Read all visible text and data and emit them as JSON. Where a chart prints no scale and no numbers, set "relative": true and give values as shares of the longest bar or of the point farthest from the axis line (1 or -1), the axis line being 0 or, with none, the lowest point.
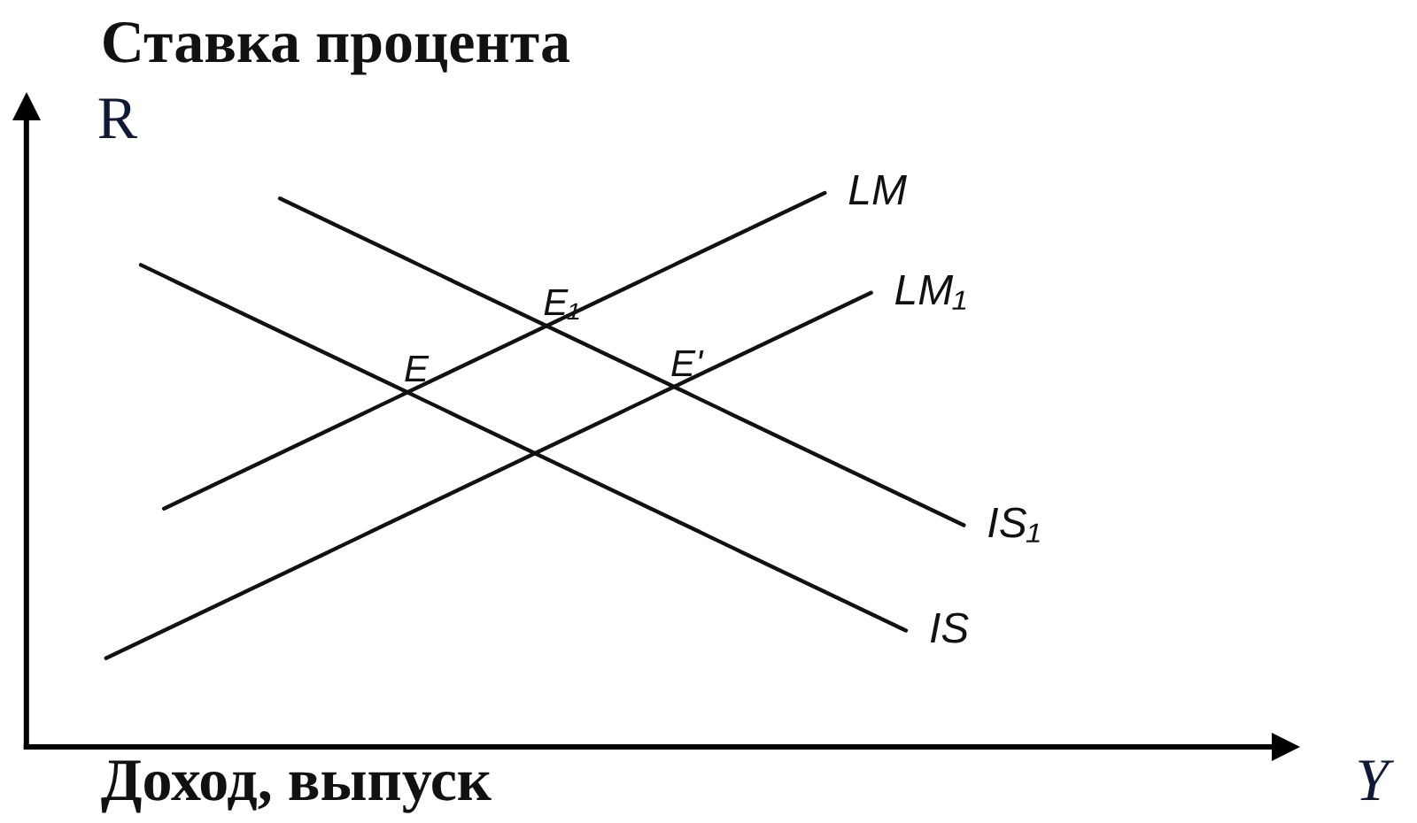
{
  "chart_data": {
    "type": "line",
    "relative": true,
    "xlabel": "Доход, выпуск",
    "ylabel": "Ставка процента",
    "categories": [
      null,
      null,
      null,
      null,
      null,
      null,
      null,
      null,
      null,
      null,
      null,
      null,
      null,
      null,
      null,
      null,
      null,
      null,
      null,
      null,
      null,
      null,
      null,
      null,
      null,
      null,
      null,
      null,
      null,
      null,
      null,
      null,
      null,
      null,
      null,
      null,
      null,
      null,
      null,
      null,
      null,
      null,
      null,
      null,
      null,
      null,
      null,
      null,
      null,
      null,
      null,
      null,
      null,
      null,
      null,
      null,
      null,
      null,
      null,
      null,
      null,
      null,
      null,
      null,
      null,
      null,
      null,
      null,
      null,
      null,
      null,
      null,
      null,
      null,
      null
    ],
    "series": [
      {
        "name": "LM",
        "color": "#111111",
        "values": [
          null,
          null,
          null,
          null,
          null,
          0.43,
          0.44,
          0.45,
          0.46,
          0.47,
          0.48,
          0.49,
          0.5,
          0.51,
          0.52,
          0.53,
          0.54,
          0.55,
          0.56,
          0.57,
          0.58,
          0.59,
          0.6,
          0.61,
          0.62,
          0.63,
          0.64,
          0.65,
          0.66,
          0.67,
          0.68,
          0.69,
          0.7,
          0.71,
          0.72,
          0.73,
          0.74,
          0.75,
          0.76,
          0.77,
          0.78,
          0.79,
          0.8,
          0.81,
          0.82,
          0.83,
          0.84,
          0.85,
          0.86,
          0.87,
          0.88,
          0.89,
          0.9,
          0.91,
          0.92,
          0.93,
          0.94,
          0.95,
          0.96,
          0.97,
          0.98,
          0.99,
          1.0,
          null,
          null,
          null,
          null,
          null,
          null,
          null,
          null,
          null,
          null,
          null,
          null
        ]
      },
      {
        "name": "LM₁",
        "color": "#111111",
        "values": [
          0.16,
          0.17,
          0.18,
          0.19,
          0.2,
          0.21,
          0.22,
          0.23,
          0.24,
          0.25,
          0.26,
          0.27,
          0.28,
          0.29,
          0.3,
          0.31,
          0.32,
          0.33,
          0.34,
          0.35,
          0.36,
          0.37,
          0.38,
          0.39,
          0.4,
          0.41,
          0.42,
          0.43,
          0.44,
          0.45,
          0.46,
          0.47,
          0.48,
          0.49,
          0.5,
          0.51,
          0.52,
          0.53,
          0.54,
          0.55,
          0.56,
          0.57,
          0.58,
          0.59,
          0.6,
          0.61,
          0.62,
          0.63,
          0.64,
          0.65,
          0.66,
          0.67,
          0.68,
          0.69,
          0.7,
          0.71,
          0.72,
          0.73,
          0.74,
          0.75,
          0.76,
          0.77,
          0.78,
          0.79,
          0.8,
          0.81,
          0.82,
          null,
          null,
          null,
          null,
          null,
          null,
          null,
          null
        ]
      },
      {
        "name": "IS₁",
        "color": "#111111",
        "values": [
          null,
          null,
          null,
          null,
          null,
          null,
          null,
          null,
          null,
          null,
          null,
          null,
          null,
          null,
          null,
          0.99,
          0.98,
          0.97,
          0.96,
          0.95,
          0.94,
          0.93,
          0.92,
          0.91,
          0.9,
          0.89,
          0.88,
          0.87,
          0.86,
          0.85,
          0.84,
          0.83,
          0.82,
          0.81,
          0.8,
          0.79,
          0.78,
          0.77,
          0.76,
          0.75,
          0.74,
          0.73,
          0.72,
          0.71,
          0.7,
          0.69,
          0.68,
          0.67,
          0.66,
          0.65,
          0.64,
          0.63,
          0.62,
          0.61,
          0.6,
          0.59,
          0.58,
          0.57,
          0.56,
          0.55,
          0.54,
          0.53,
          0.52,
          0.51,
          0.5,
          0.49,
          0.48,
          0.47,
          0.46,
          0.45,
          0.44,
          0.43,
          0.42,
          0.41,
          0.4
        ]
      },
      {
        "name": "IS",
        "color": "#111111",
        "values": [
          null,
          null,
          null,
          0.87,
          0.86,
          0.85,
          0.84,
          0.83,
          0.82,
          0.81,
          0.8,
          0.79,
          0.78,
          0.77,
          0.76,
          0.75,
          0.74,
          0.73,
          0.72,
          0.71,
          0.7,
          0.69,
          0.68,
          0.67,
          0.66,
          0.65,
          0.64,
          0.63,
          0.62,
          0.61,
          0.6,
          0.59,
          0.58,
          0.57,
          0.56,
          0.55,
          0.54,
          0.53,
          0.52,
          0.51,
          0.5,
          0.49,
          0.48,
          0.47,
          0.46,
          0.45,
          0.44,
          0.43,
          0.42,
          0.41,
          0.4,
          0.39,
          0.38,
          0.37,
          0.36,
          0.35,
          0.34,
          0.33,
          0.32,
          0.31,
          0.3,
          0.29,
          0.28,
          0.27,
          0.26,
          0.25,
          0.24,
          0.23,
          0.22,
          0.21,
          null,
          null,
          null,
          null,
          null
        ]
      }
    ],
    "annotations": [
      {
        "text": "E",
        "y": 0.64
      },
      {
        "text": "E₁",
        "y": 0.76
      },
      {
        "text": "E'",
        "y": 0.65
      },
      "R",
      "Y"
    ]
  }
}
